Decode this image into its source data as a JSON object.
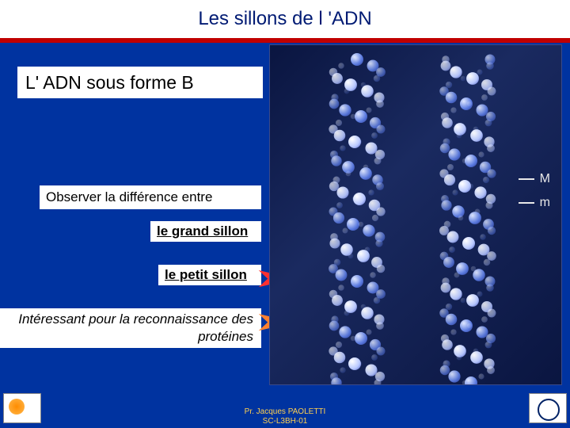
{
  "title": "Les sillons de l 'ADN",
  "subtitle": "L' ADN sous forme B",
  "observe": "Observer la différence entre",
  "grand_sillon": "le grand sillon",
  "petit_sillon": "le petit sillon",
  "interest": "Intéressant pour la reconnaissance des protéines",
  "labels": {
    "major": "M",
    "minor": "m"
  },
  "credit_line1": "Pr. Jacques PAOLETTI",
  "credit_line2": "SC-L3BH-01",
  "colors": {
    "blue_bg": "#0033a0",
    "red_bar": "#c00000",
    "title_text": "#001a73",
    "arrow_red": "#ff3030",
    "arrow_orange": "#ff8030",
    "credit": "#ffd050"
  }
}
